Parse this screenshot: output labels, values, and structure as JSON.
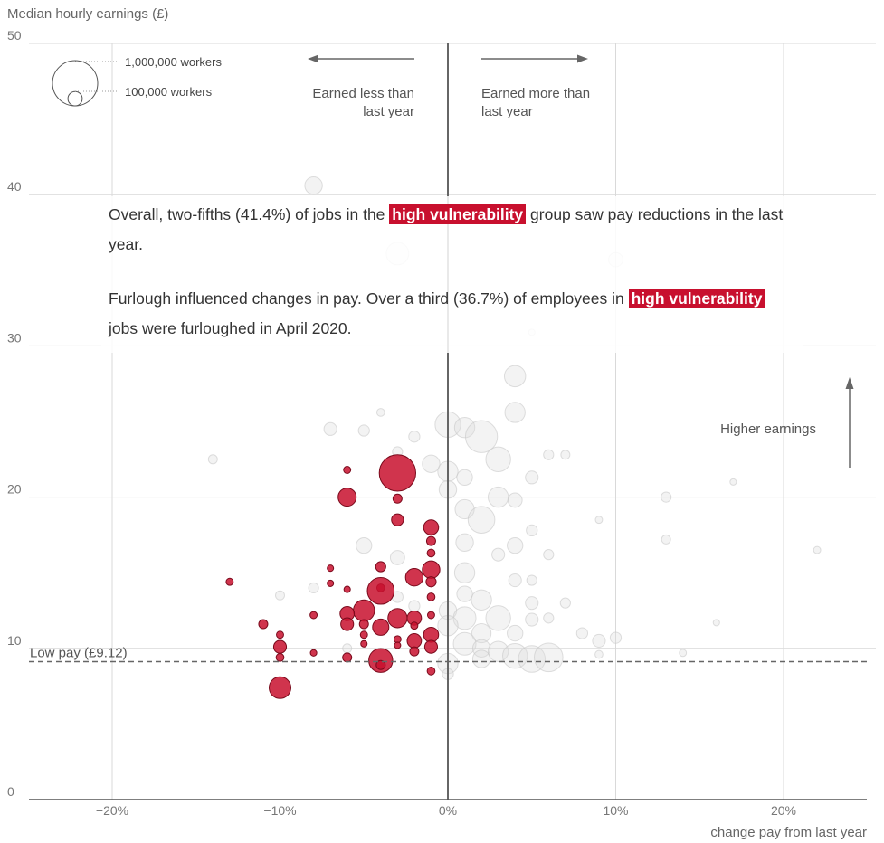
{
  "chart_data": {
    "type": "scatter",
    "title": "",
    "ylabel": "Median hourly earnings (£)",
    "xlabel": "change pay from last year",
    "xlim": [
      -25,
      25
    ],
    "ylim": [
      0,
      50
    ],
    "x_ticks": [
      {
        "value": -20,
        "label": "−20%"
      },
      {
        "value": -10,
        "label": "−10%"
      },
      {
        "value": 0,
        "label": "0%"
      },
      {
        "value": 10,
        "label": "10%"
      },
      {
        "value": 20,
        "label": "20%"
      }
    ],
    "y_ticks": [
      {
        "value": 0,
        "label": "0"
      },
      {
        "value": 10,
        "label": "10"
      },
      {
        "value": 20,
        "label": "20"
      },
      {
        "value": 30,
        "label": "30"
      },
      {
        "value": 40,
        "label": "40"
      },
      {
        "value": 50,
        "label": "50"
      }
    ],
    "grid": true,
    "reference_line": {
      "y": 9.12,
      "label": "Low pay (£9.12)"
    },
    "annotations": {
      "less": [
        "Earned less than",
        "last year"
      ],
      "more": [
        "Earned more than",
        "last year"
      ],
      "higher": "Higher earnings"
    },
    "size_legend": [
      {
        "workers": 1000000,
        "label": "1,000,000 workers"
      },
      {
        "workers": 100000,
        "label": "100,000 workers"
      }
    ],
    "colors": {
      "high_vulnerability": "#c8102e",
      "other": "#dcdcdc",
      "reference": "#666666",
      "grid": "#d9d9d9"
    },
    "series": [
      {
        "name": "high vulnerability",
        "points": [
          {
            "x": -3,
            "y": 21.6,
            "w": 650000
          },
          {
            "x": -6,
            "y": 20.0,
            "w": 160000
          },
          {
            "x": -6,
            "y": 21.8,
            "w": 25000
          },
          {
            "x": -3,
            "y": 19.9,
            "w": 40000
          },
          {
            "x": -3,
            "y": 18.5,
            "w": 70000
          },
          {
            "x": -1,
            "y": 18.0,
            "w": 110000
          },
          {
            "x": -1,
            "y": 17.1,
            "w": 40000
          },
          {
            "x": -1,
            "y": 16.3,
            "w": 30000
          },
          {
            "x": -1,
            "y": 15.2,
            "w": 150000
          },
          {
            "x": -4,
            "y": 15.4,
            "w": 50000
          },
          {
            "x": -2,
            "y": 14.7,
            "w": 150000
          },
          {
            "x": -1,
            "y": 14.4,
            "w": 50000
          },
          {
            "x": -4,
            "y": 14.0,
            "w": 30000
          },
          {
            "x": -13,
            "y": 14.4,
            "w": 25000
          },
          {
            "x": -7,
            "y": 15.3,
            "w": 20000
          },
          {
            "x": -7,
            "y": 14.3,
            "w": 20000
          },
          {
            "x": -6,
            "y": 13.9,
            "w": 20000
          },
          {
            "x": -4,
            "y": 13.8,
            "w": 350000
          },
          {
            "x": -1,
            "y": 13.4,
            "w": 30000
          },
          {
            "x": -5,
            "y": 12.5,
            "w": 220000
          },
          {
            "x": -6,
            "y": 12.3,
            "w": 100000
          },
          {
            "x": -8,
            "y": 12.2,
            "w": 25000
          },
          {
            "x": -2,
            "y": 12.0,
            "w": 100000
          },
          {
            "x": -1,
            "y": 12.2,
            "w": 25000
          },
          {
            "x": -3,
            "y": 12.0,
            "w": 180000
          },
          {
            "x": -6,
            "y": 11.6,
            "w": 80000
          },
          {
            "x": -4,
            "y": 11.4,
            "w": 130000
          },
          {
            "x": -5,
            "y": 11.6,
            "w": 40000
          },
          {
            "x": -11,
            "y": 11.6,
            "w": 40000
          },
          {
            "x": -2,
            "y": 11.5,
            "w": 25000
          },
          {
            "x": -1,
            "y": 10.9,
            "w": 110000
          },
          {
            "x": -5,
            "y": 10.9,
            "w": 25000
          },
          {
            "x": -10,
            "y": 10.9,
            "w": 25000
          },
          {
            "x": -3,
            "y": 10.6,
            "w": 25000
          },
          {
            "x": -2,
            "y": 10.5,
            "w": 100000
          },
          {
            "x": -5,
            "y": 10.3,
            "w": 20000
          },
          {
            "x": -3,
            "y": 10.2,
            "w": 20000
          },
          {
            "x": -10,
            "y": 10.1,
            "w": 80000
          },
          {
            "x": -1,
            "y": 10.1,
            "w": 80000
          },
          {
            "x": -2,
            "y": 9.8,
            "w": 40000
          },
          {
            "x": -8,
            "y": 9.7,
            "w": 20000
          },
          {
            "x": -10,
            "y": 9.4,
            "w": 30000
          },
          {
            "x": -6,
            "y": 9.4,
            "w": 40000
          },
          {
            "x": -4,
            "y": 9.2,
            "w": 280000
          },
          {
            "x": -4,
            "y": 8.9,
            "w": 40000
          },
          {
            "x": -1,
            "y": 8.5,
            "w": 30000
          },
          {
            "x": -10,
            "y": 7.4,
            "w": 230000
          }
        ]
      },
      {
        "name": "other",
        "points": [
          {
            "x": -8,
            "y": 40.6,
            "w": 150000
          },
          {
            "x": -3,
            "y": 36.1,
            "w": 250000
          },
          {
            "x": 10,
            "y": 35.7,
            "w": 100000
          },
          {
            "x": 5,
            "y": 30.9,
            "w": 20000
          },
          {
            "x": 4,
            "y": 28.0,
            "w": 220000
          },
          {
            "x": 4,
            "y": 25.6,
            "w": 200000
          },
          {
            "x": 0,
            "y": 24.8,
            "w": 320000
          },
          {
            "x": 1,
            "y": 24.6,
            "w": 200000
          },
          {
            "x": 2,
            "y": 24.0,
            "w": 500000
          },
          {
            "x": -4,
            "y": 25.6,
            "w": 30000
          },
          {
            "x": -7,
            "y": 24.5,
            "w": 80000
          },
          {
            "x": -5,
            "y": 24.4,
            "w": 60000
          },
          {
            "x": -2,
            "y": 24.0,
            "w": 60000
          },
          {
            "x": -3,
            "y": 23.0,
            "w": 50000
          },
          {
            "x": 3,
            "y": 22.5,
            "w": 300000
          },
          {
            "x": -1,
            "y": 22.2,
            "w": 150000
          },
          {
            "x": 0,
            "y": 21.7,
            "w": 200000
          },
          {
            "x": 1,
            "y": 21.3,
            "w": 120000
          },
          {
            "x": 5,
            "y": 21.3,
            "w": 80000
          },
          {
            "x": 6,
            "y": 22.8,
            "w": 50000
          },
          {
            "x": 7,
            "y": 22.8,
            "w": 40000
          },
          {
            "x": -14,
            "y": 22.5,
            "w": 40000
          },
          {
            "x": 0,
            "y": 20.5,
            "w": 150000
          },
          {
            "x": 3,
            "y": 20.0,
            "w": 200000
          },
          {
            "x": 4,
            "y": 19.8,
            "w": 100000
          },
          {
            "x": 1,
            "y": 19.2,
            "w": 180000
          },
          {
            "x": 2,
            "y": 18.5,
            "w": 350000
          },
          {
            "x": 1,
            "y": 17.0,
            "w": 150000
          },
          {
            "x": 4,
            "y": 16.8,
            "w": 120000
          },
          {
            "x": 5,
            "y": 17.8,
            "w": 60000
          },
          {
            "x": 13,
            "y": 20.0,
            "w": 50000
          },
          {
            "x": 17,
            "y": 21.0,
            "w": 20000
          },
          {
            "x": 9,
            "y": 18.5,
            "w": 25000
          },
          {
            "x": 13,
            "y": 17.2,
            "w": 40000
          },
          {
            "x": 22,
            "y": 16.5,
            "w": 25000
          },
          {
            "x": -5,
            "y": 16.8,
            "w": 120000
          },
          {
            "x": -3,
            "y": 16.0,
            "w": 100000
          },
          {
            "x": 3,
            "y": 16.2,
            "w": 80000
          },
          {
            "x": 6,
            "y": 16.2,
            "w": 50000
          },
          {
            "x": 1,
            "y": 15.0,
            "w": 200000
          },
          {
            "x": 4,
            "y": 14.5,
            "w": 80000
          },
          {
            "x": 5,
            "y": 14.5,
            "w": 50000
          },
          {
            "x": -8,
            "y": 14.0,
            "w": 50000
          },
          {
            "x": -10,
            "y": 13.5,
            "w": 40000
          },
          {
            "x": -3,
            "y": 13.4,
            "w": 60000
          },
          {
            "x": 1,
            "y": 13.6,
            "w": 120000
          },
          {
            "x": 2,
            "y": 13.2,
            "w": 200000
          },
          {
            "x": 5,
            "y": 13.0,
            "w": 80000
          },
          {
            "x": 7,
            "y": 13.0,
            "w": 50000
          },
          {
            "x": -2,
            "y": 12.8,
            "w": 60000
          },
          {
            "x": 0,
            "y": 12.5,
            "w": 150000
          },
          {
            "x": 1,
            "y": 12.0,
            "w": 250000
          },
          {
            "x": 3,
            "y": 12.0,
            "w": 300000
          },
          {
            "x": 5,
            "y": 11.9,
            "w": 80000
          },
          {
            "x": 6,
            "y": 12.0,
            "w": 50000
          },
          {
            "x": 0,
            "y": 11.5,
            "w": 200000
          },
          {
            "x": 2,
            "y": 11.0,
            "w": 180000
          },
          {
            "x": 4,
            "y": 11.0,
            "w": 120000
          },
          {
            "x": 8,
            "y": 11.0,
            "w": 60000
          },
          {
            "x": 9,
            "y": 10.5,
            "w": 80000
          },
          {
            "x": 10,
            "y": 10.7,
            "w": 60000
          },
          {
            "x": 16,
            "y": 11.7,
            "w": 20000
          },
          {
            "x": 1,
            "y": 10.3,
            "w": 250000
          },
          {
            "x": 2,
            "y": 10.0,
            "w": 150000
          },
          {
            "x": 3,
            "y": 9.8,
            "w": 200000
          },
          {
            "x": 4,
            "y": 9.5,
            "w": 300000
          },
          {
            "x": 5,
            "y": 9.3,
            "w": 350000
          },
          {
            "x": 6,
            "y": 9.4,
            "w": 400000
          },
          {
            "x": 0,
            "y": 9.0,
            "w": 200000
          },
          {
            "x": 2,
            "y": 9.3,
            "w": 150000
          },
          {
            "x": 14,
            "y": 9.7,
            "w": 25000
          },
          {
            "x": 9,
            "y": 9.6,
            "w": 30000
          },
          {
            "x": -6,
            "y": 10.0,
            "w": 40000
          },
          {
            "x": 0,
            "y": 8.3,
            "w": 60000
          }
        ]
      }
    ]
  },
  "textbox": {
    "p1_before": "Overall, two-fifths (41.4%) of jobs in the ",
    "p1_highlight": "high vulnerability",
    "p1_after": " group saw pay reductions in the last year.",
    "p2_before": "Furlough influenced changes in pay. Over a third (36.7%) of employees in ",
    "p2_highlight": "high vulnerability",
    "p2_after": " jobs were furloughed in April 2020."
  }
}
